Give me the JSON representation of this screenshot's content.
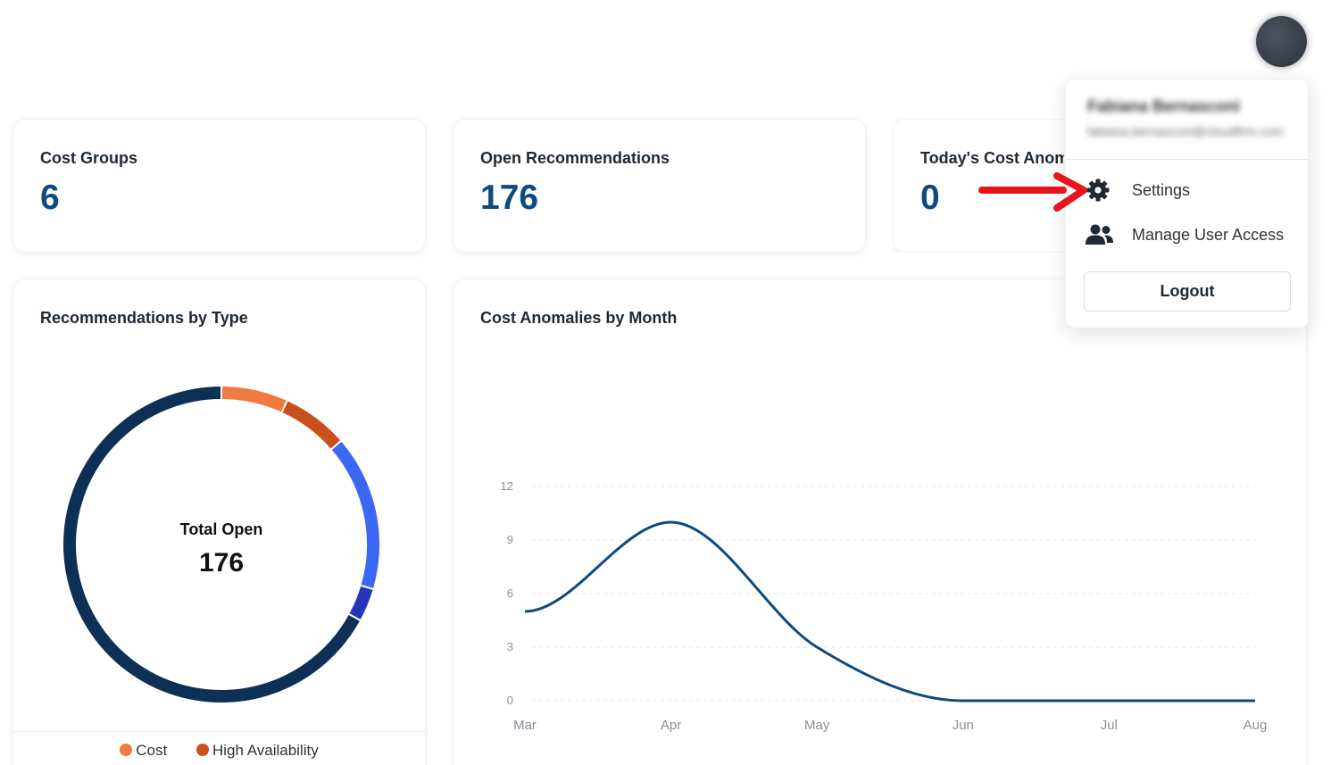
{
  "stats": [
    {
      "label": "Cost Groups",
      "value": "6"
    },
    {
      "label": "Open Recommendations",
      "value": "176"
    },
    {
      "label": "Today's Cost Anom",
      "value": "0"
    }
  ],
  "donut_card": {
    "title": "Recommendations by Type",
    "center_label": "Total Open",
    "center_value": "176",
    "legend": [
      {
        "label": "Cost",
        "color": "#f07a3f"
      },
      {
        "label": "High Availability",
        "color": "#c9501c"
      }
    ]
  },
  "line_card": {
    "title": "Cost Anomalies by Month"
  },
  "user_menu": {
    "name": "Fabiana Bernasconi",
    "email": "fabiana.bernasconi@cloudfirm.com",
    "items": [
      {
        "label": "Settings",
        "icon": "gear-icon"
      },
      {
        "label": "Manage User Access",
        "icon": "users-icon"
      }
    ],
    "logout_label": "Logout"
  },
  "annotation": {
    "color": "#e8141c"
  },
  "chart_data": [
    {
      "type": "pie",
      "variant": "donut",
      "total": 176,
      "slices": [
        {
          "name": "Cost",
          "value": 12,
          "color": "#f07a3f"
        },
        {
          "name": "High Availability",
          "value": 12,
          "color": "#c9501c"
        },
        {
          "name": "",
          "value": 28,
          "color": "#3c67f3"
        },
        {
          "name": "",
          "value": 6,
          "color": "#2337b8"
        },
        {
          "name": "",
          "value": 118,
          "color": "#0d3057"
        }
      ]
    },
    {
      "type": "line",
      "smooth": true,
      "categories": [
        "Mar",
        "Apr",
        "May",
        "Jun",
        "Jul",
        "Aug"
      ],
      "values": [
        5,
        10,
        3,
        0,
        0,
        0
      ],
      "ylim": [
        0,
        12
      ],
      "yticks": [
        0,
        3,
        6,
        9,
        12
      ],
      "grid": true,
      "line_color": "#0d4a82"
    }
  ]
}
